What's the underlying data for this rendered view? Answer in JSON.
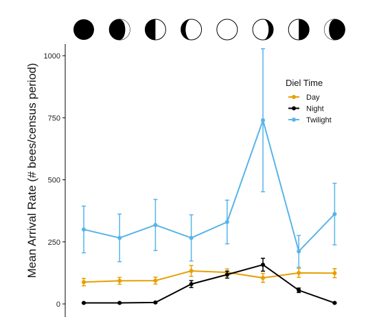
{
  "chart_data": {
    "type": "line",
    "ylabel": "Mean Arrival Rate (# bees/census period)",
    "ylim": [
      0,
      1000
    ],
    "yticks": [
      0,
      250,
      500,
      750,
      1000
    ],
    "categories": [
      {
        "moon": "new-moon-icon"
      },
      {
        "moon": "waxing-crescent-icon"
      },
      {
        "moon": "first-quarter-icon"
      },
      {
        "moon": "waxing-gibbous-icon"
      },
      {
        "moon": "full-moon-icon"
      },
      {
        "moon": "waning-gibbous-icon"
      },
      {
        "moon": "last-quarter-icon"
      },
      {
        "moon": "waning-crescent-icon"
      }
    ],
    "legend": {
      "title": "Diel Time",
      "placement": "top-right"
    },
    "grid": false,
    "series": [
      {
        "name": "Day",
        "color": "#E69F00",
        "values": [
          88,
          93,
          94,
          133,
          127,
          105,
          125,
          124
        ],
        "err": [
          15,
          14,
          14,
          22,
          14,
          18,
          18,
          18
        ]
      },
      {
        "name": "Night",
        "color": "#000000",
        "values": [
          4,
          4,
          6,
          80,
          118,
          158,
          55,
          4
        ],
        "err": [
          2,
          2,
          2,
          14,
          14,
          26,
          9,
          2
        ]
      },
      {
        "name": "Twilight",
        "color": "#56B4E9",
        "values": [
          300,
          266,
          318,
          266,
          330,
          740,
          212,
          362
        ],
        "err": [
          94,
          96,
          103,
          93,
          88,
          288,
          64,
          124
        ]
      }
    ]
  }
}
